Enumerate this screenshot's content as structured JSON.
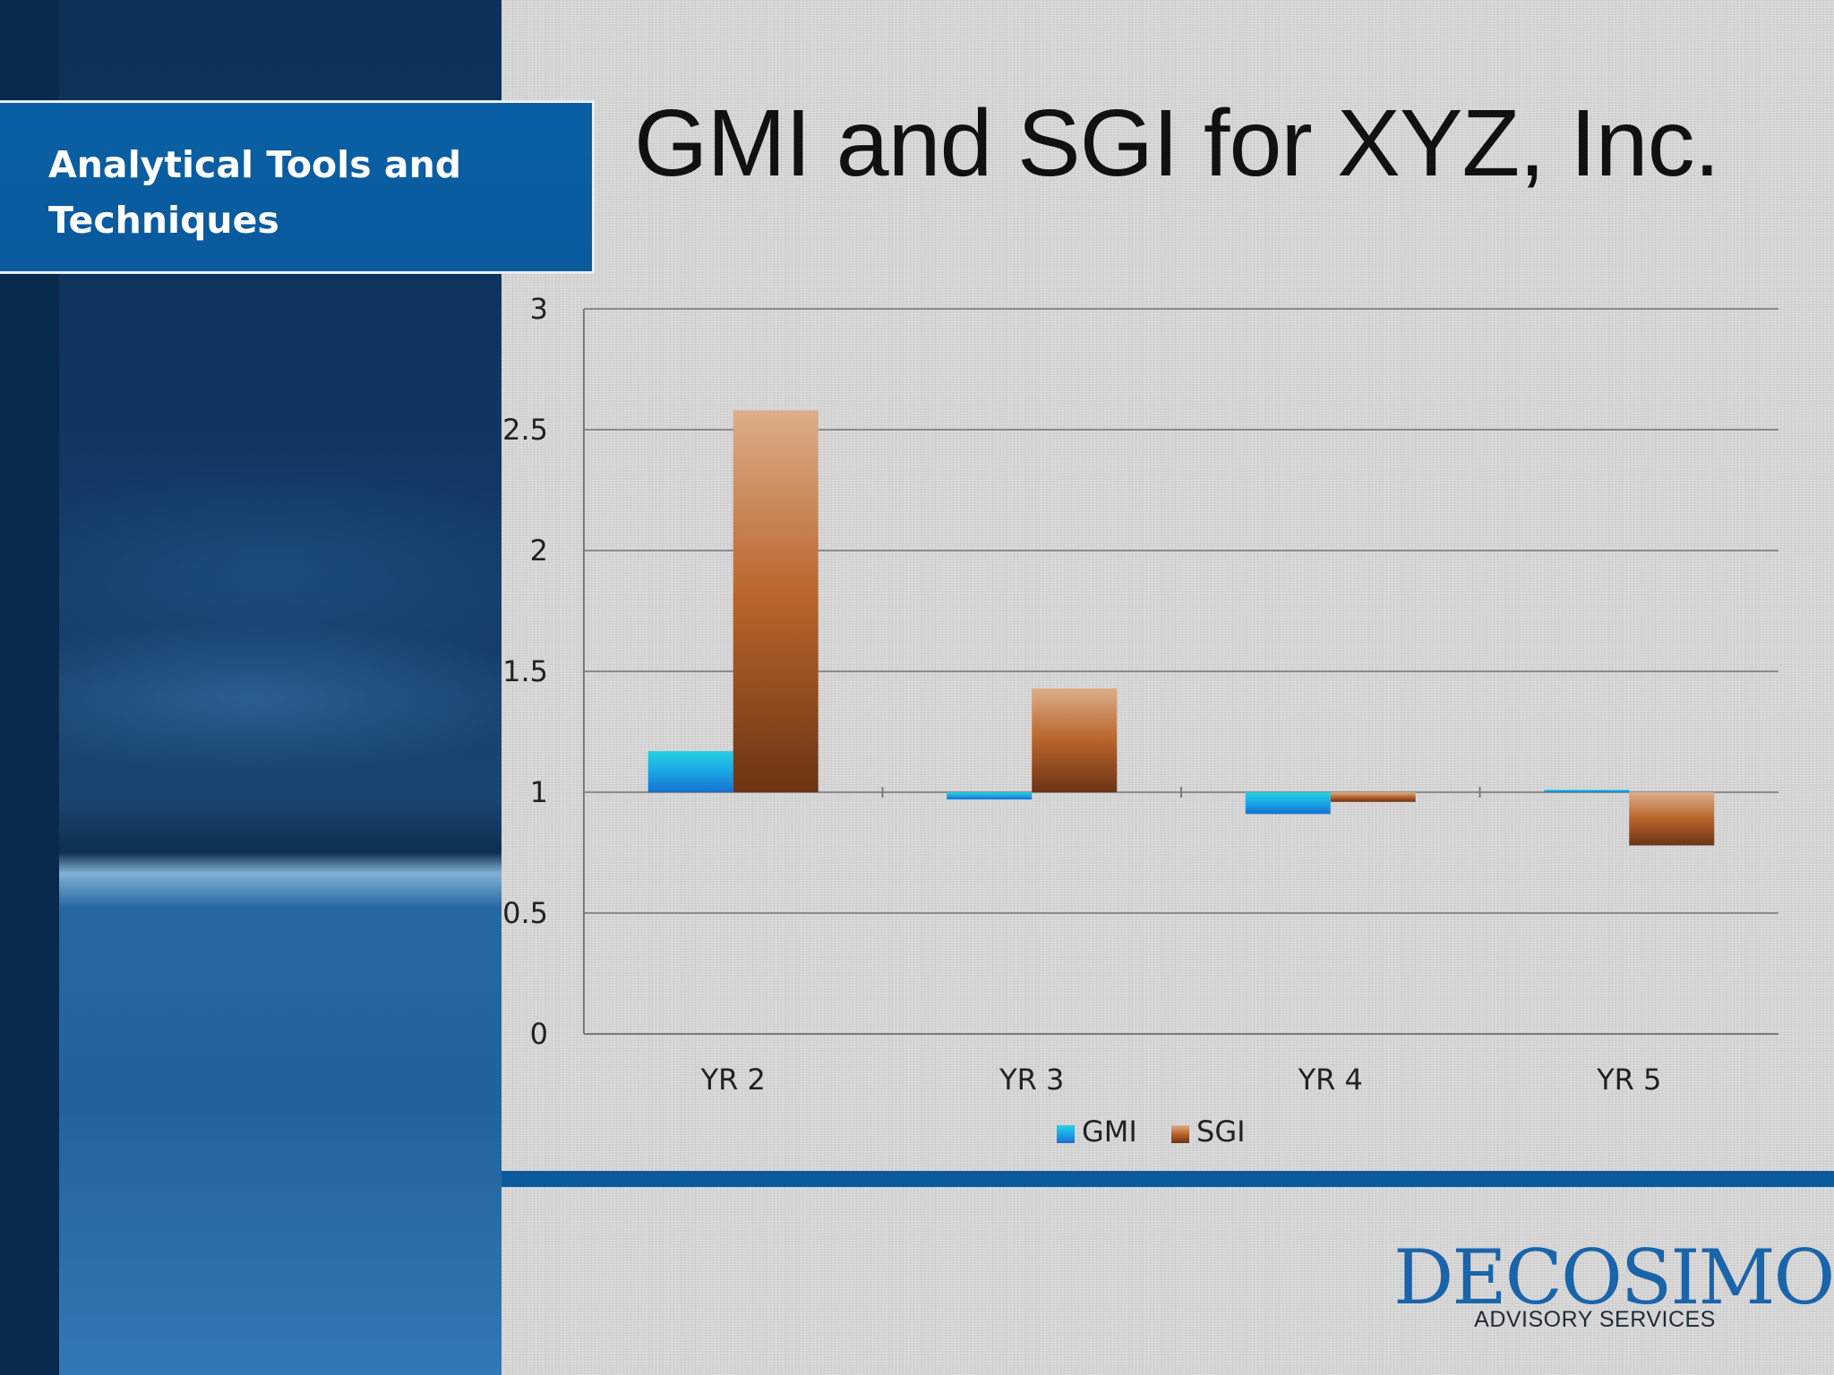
{
  "section": {
    "title": "Analytical Tools and Techniques"
  },
  "slide": {
    "title": "GMI and SGI for XYZ, Inc."
  },
  "logo": {
    "name": "DECOSIMO",
    "tagline": "ADVISORY SERVICES"
  },
  "colors": {
    "gmi": "#1aa6e6",
    "sgi": "#b8642a",
    "brand": "#0b5b9c"
  },
  "chart_data": {
    "type": "bar",
    "categories": [
      "YR 2",
      "YR 3",
      "YR 4",
      "YR 5"
    ],
    "series": [
      {
        "name": "GMI",
        "values": [
          1.17,
          0.97,
          0.91,
          1.01
        ]
      },
      {
        "name": "SGI",
        "values": [
          2.58,
          1.43,
          0.96,
          0.78
        ]
      }
    ],
    "baseline": 1,
    "ylim": [
      0,
      3
    ],
    "yticks": [
      "0",
      "0.5",
      "1",
      "1.5",
      "2",
      "2.5",
      "3"
    ],
    "grid": true,
    "legend": "bottom",
    "title": "",
    "xlabel": "",
    "ylabel": ""
  }
}
